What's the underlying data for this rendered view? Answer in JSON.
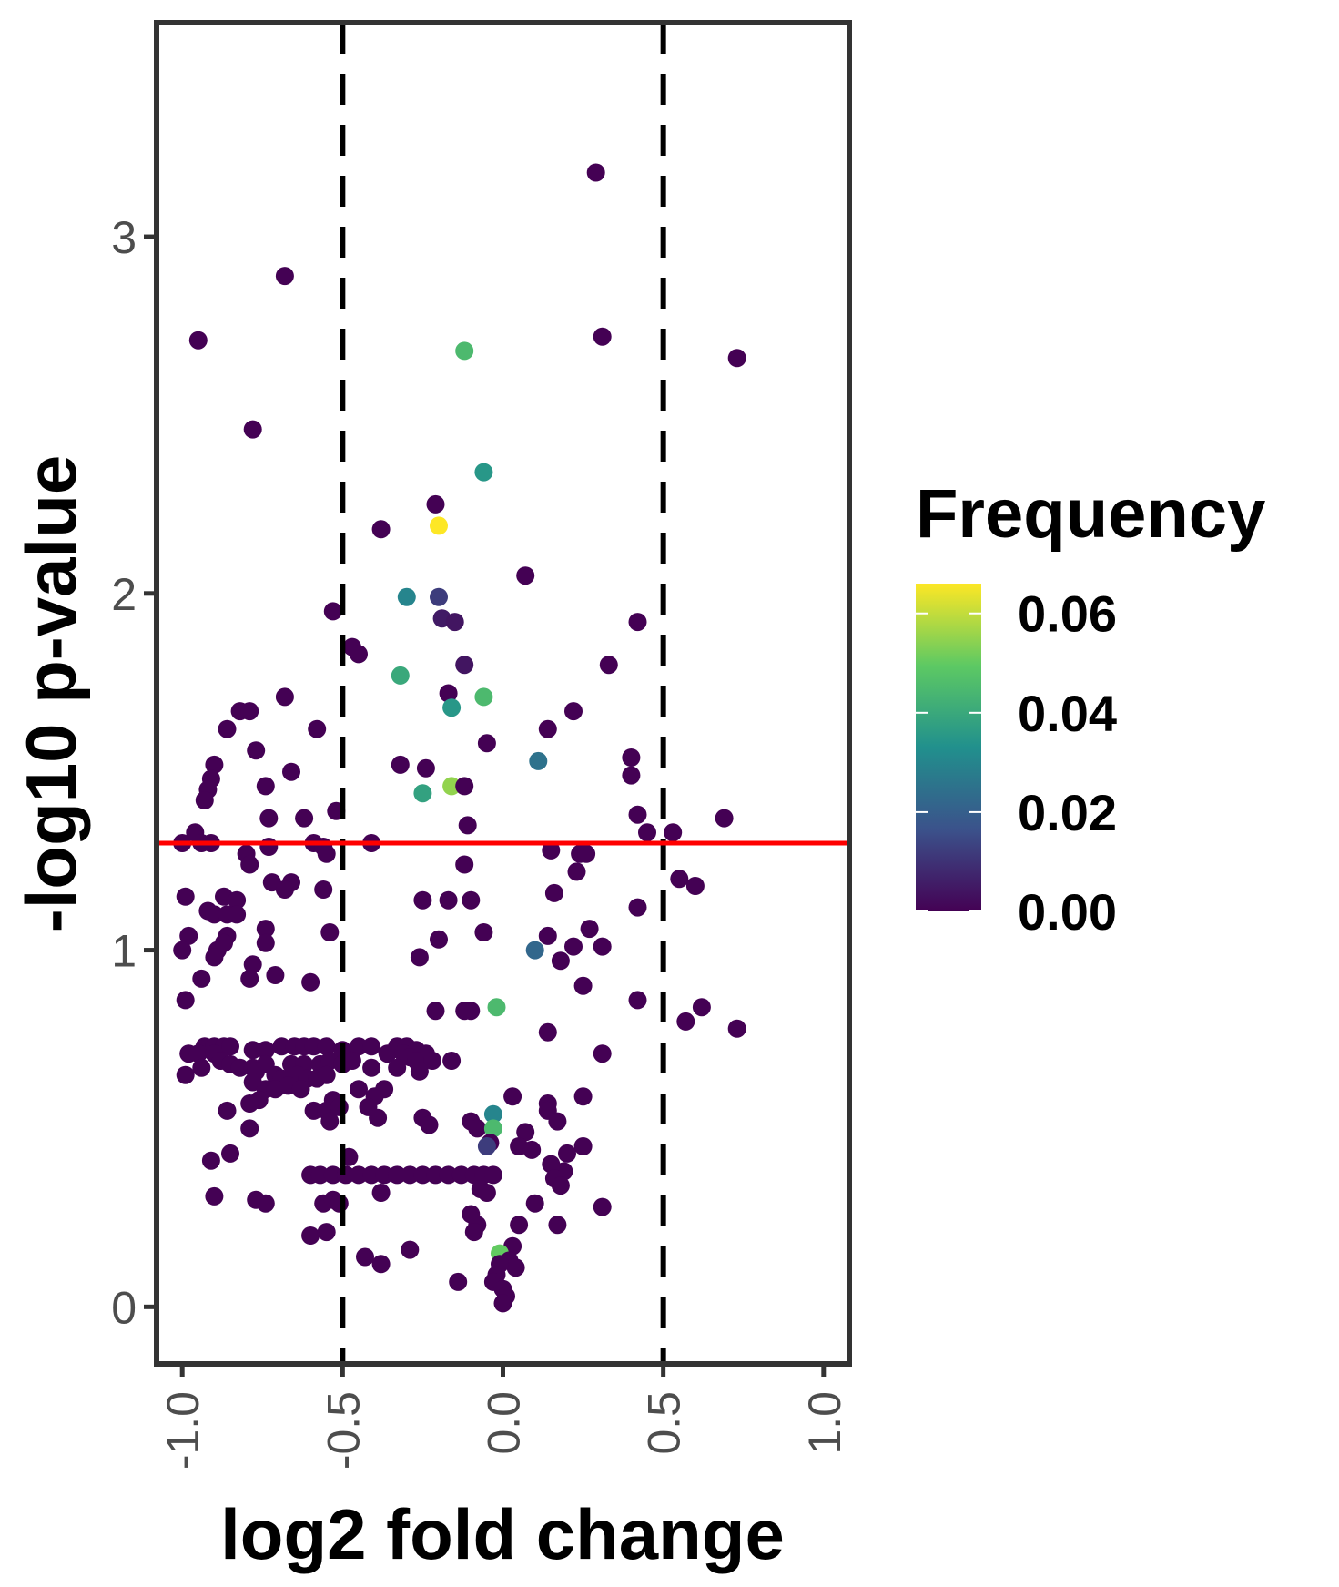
{
  "chart_data": {
    "type": "scatter",
    "xlabel": "log2 fold change",
    "ylabel": "-log10 p-value",
    "xlim": [
      -1.08,
      1.08
    ],
    "ylim": [
      -0.16,
      3.6
    ],
    "x_ticks": [
      "-1.0",
      "-0.5",
      "0.0",
      "0.5",
      "1.0"
    ],
    "x_tick_values": [
      -1.0,
      -0.5,
      0.0,
      0.5,
      1.0
    ],
    "y_ticks": [
      "0",
      "1",
      "2",
      "3"
    ],
    "y_tick_values": [
      0,
      1,
      2,
      3
    ],
    "vlines": [
      -0.5,
      0.5
    ],
    "hline": 1.3,
    "hline_color": "#ff0000",
    "vline_color": "#000000",
    "grid": false,
    "legend": {
      "title": "Frequency",
      "position": "right",
      "labels": [
        "0.06",
        "0.04",
        "0.02",
        "0.00"
      ],
      "values": [
        0.06,
        0.04,
        0.02,
        0.0
      ],
      "range": [
        0.0,
        0.066
      ],
      "colormap": [
        "#440154",
        "#3b528b",
        "#21908d",
        "#5dc963",
        "#fde725"
      ]
    },
    "points": [
      [
        0.29,
        3.18,
        0.0
      ],
      [
        -0.68,
        2.89,
        0.0
      ],
      [
        0.31,
        2.72,
        0.0
      ],
      [
        -0.95,
        2.71,
        0.0
      ],
      [
        -0.12,
        2.68,
        0.045
      ],
      [
        0.73,
        2.66,
        0.0
      ],
      [
        -0.78,
        2.46,
        0.0
      ],
      [
        -0.06,
        2.34,
        0.035
      ],
      [
        -0.21,
        2.25,
        0.0
      ],
      [
        -0.2,
        2.19,
        0.066
      ],
      [
        -0.38,
        2.18,
        0.0
      ],
      [
        0.07,
        2.05,
        0.0
      ],
      [
        -0.3,
        1.99,
        0.03
      ],
      [
        -0.2,
        1.99,
        0.012
      ],
      [
        -0.53,
        1.95,
        0.0
      ],
      [
        -0.19,
        1.93,
        0.005
      ],
      [
        -0.15,
        1.92,
        0.004
      ],
      [
        0.42,
        1.92,
        0.0
      ],
      [
        -0.47,
        1.85,
        0.0
      ],
      [
        -0.45,
        1.83,
        0.0
      ],
      [
        -0.12,
        1.8,
        0.004
      ],
      [
        0.33,
        1.8,
        0.0
      ],
      [
        -0.32,
        1.77,
        0.04
      ],
      [
        -0.06,
        1.71,
        0.045
      ],
      [
        -0.68,
        1.71,
        0.0
      ],
      [
        -0.17,
        1.72,
        0.0
      ],
      [
        -0.16,
        1.68,
        0.035
      ],
      [
        -0.82,
        1.67,
        0.0
      ],
      [
        -0.79,
        1.67,
        0.0
      ],
      [
        0.22,
        1.67,
        0.0
      ],
      [
        -0.86,
        1.62,
        0.0
      ],
      [
        -0.58,
        1.62,
        0.0
      ],
      [
        0.14,
        1.62,
        0.0
      ],
      [
        -0.05,
        1.58,
        0.0
      ],
      [
        -0.77,
        1.56,
        0.0
      ],
      [
        0.4,
        1.54,
        0.0
      ],
      [
        -0.32,
        1.52,
        0.0
      ],
      [
        0.11,
        1.53,
        0.025
      ],
      [
        -0.24,
        1.51,
        0.0
      ],
      [
        -0.9,
        1.52,
        0.0
      ],
      [
        -0.66,
        1.5,
        0.0
      ],
      [
        -0.91,
        1.48,
        0.0
      ],
      [
        0.4,
        1.49,
        0.0
      ],
      [
        -0.74,
        1.46,
        0.0
      ],
      [
        -0.16,
        1.46,
        0.055
      ],
      [
        -0.12,
        1.46,
        0.0
      ],
      [
        -0.92,
        1.45,
        0.0
      ],
      [
        -0.25,
        1.44,
        0.038
      ],
      [
        -0.93,
        1.42,
        0.0
      ],
      [
        -0.52,
        1.39,
        0.0
      ],
      [
        0.42,
        1.38,
        0.0
      ],
      [
        0.69,
        1.37,
        0.0
      ],
      [
        -0.73,
        1.37,
        0.0
      ],
      [
        -0.62,
        1.37,
        0.0
      ],
      [
        -0.96,
        1.33,
        0.0
      ],
      [
        -0.11,
        1.35,
        0.0
      ],
      [
        0.45,
        1.33,
        0.0
      ],
      [
        0.53,
        1.33,
        0.0
      ],
      [
        -0.94,
        1.3,
        0.0
      ],
      [
        -0.91,
        1.3,
        0.0
      ],
      [
        -1.0,
        1.3,
        0.0
      ],
      [
        -0.59,
        1.3,
        0.0
      ],
      [
        -0.41,
        1.3,
        0.0
      ],
      [
        -0.8,
        1.27,
        0.0
      ],
      [
        -0.73,
        1.29,
        0.0
      ],
      [
        -0.56,
        1.29,
        0.0
      ],
      [
        -0.55,
        1.27,
        0.0
      ],
      [
        0.15,
        1.28,
        0.0
      ],
      [
        0.24,
        1.27,
        0.0
      ],
      [
        0.26,
        1.27,
        0.0
      ],
      [
        -0.79,
        1.24,
        0.0
      ],
      [
        -0.12,
        1.24,
        0.0
      ],
      [
        0.23,
        1.22,
        0.0
      ],
      [
        -0.72,
        1.19,
        0.0
      ],
      [
        -0.66,
        1.19,
        0.0
      ],
      [
        -0.68,
        1.17,
        0.0
      ],
      [
        0.55,
        1.2,
        0.0
      ],
      [
        0.6,
        1.18,
        0.0
      ],
      [
        -0.56,
        1.17,
        0.0
      ],
      [
        0.16,
        1.16,
        0.0
      ],
      [
        -0.99,
        1.15,
        0.0
      ],
      [
        -0.87,
        1.15,
        0.0
      ],
      [
        -0.83,
        1.14,
        0.0
      ],
      [
        -0.25,
        1.14,
        0.0
      ],
      [
        -0.17,
        1.14,
        0.0
      ],
      [
        -0.1,
        1.14,
        0.0
      ],
      [
        -0.92,
        1.11,
        0.0
      ],
      [
        -0.9,
        1.1,
        0.0
      ],
      [
        -0.86,
        1.1,
        0.0
      ],
      [
        -0.83,
        1.1,
        0.0
      ],
      [
        0.42,
        1.12,
        0.0
      ],
      [
        -0.74,
        1.06,
        0.0
      ],
      [
        -0.54,
        1.05,
        0.0
      ],
      [
        -0.06,
        1.05,
        0.0
      ],
      [
        0.27,
        1.06,
        0.0
      ],
      [
        0.14,
        1.04,
        0.0
      ],
      [
        -0.98,
        1.04,
        0.0
      ],
      [
        -0.86,
        1.04,
        0.0
      ],
      [
        -0.2,
        1.03,
        0.0
      ],
      [
        -0.74,
        1.02,
        0.0
      ],
      [
        -1.0,
        1.0,
        0.0
      ],
      [
        -0.89,
        1.0,
        0.0
      ],
      [
        -0.87,
        1.02,
        0.0
      ],
      [
        0.31,
        1.01,
        0.0
      ],
      [
        0.22,
        1.01,
        0.0
      ],
      [
        0.1,
        1.0,
        0.022
      ],
      [
        -0.9,
        0.98,
        0.0
      ],
      [
        -0.26,
        0.98,
        0.0
      ],
      [
        0.18,
        0.97,
        0.0
      ],
      [
        -0.78,
        0.96,
        0.0
      ],
      [
        -0.71,
        0.93,
        0.0
      ],
      [
        -0.79,
        0.92,
        0.0
      ],
      [
        -0.94,
        0.92,
        0.0
      ],
      [
        -0.6,
        0.91,
        0.0
      ],
      [
        0.25,
        0.9,
        0.0
      ],
      [
        -0.99,
        0.86,
        0.0
      ],
      [
        0.42,
        0.86,
        0.0
      ],
      [
        -0.02,
        0.84,
        0.045
      ],
      [
        0.62,
        0.84,
        0.0
      ],
      [
        -0.1,
        0.83,
        0.0
      ],
      [
        -0.12,
        0.83,
        0.0
      ],
      [
        -0.21,
        0.83,
        0.0
      ],
      [
        0.57,
        0.8,
        0.0
      ],
      [
        0.73,
        0.78,
        0.0
      ],
      [
        0.14,
        0.77,
        0.0
      ],
      [
        -0.93,
        0.73,
        0.0
      ],
      [
        -0.9,
        0.73,
        0.0
      ],
      [
        -0.87,
        0.73,
        0.0
      ],
      [
        -0.85,
        0.73,
        0.0
      ],
      [
        -0.78,
        0.72,
        0.0
      ],
      [
        -0.74,
        0.72,
        0.0
      ],
      [
        -0.69,
        0.73,
        0.0
      ],
      [
        -0.65,
        0.73,
        0.0
      ],
      [
        -0.62,
        0.73,
        0.0
      ],
      [
        -0.59,
        0.73,
        0.0
      ],
      [
        -0.55,
        0.73,
        0.0
      ],
      [
        -0.5,
        0.72,
        0.0
      ],
      [
        -0.45,
        0.73,
        0.0
      ],
      [
        -0.41,
        0.73,
        0.0
      ],
      [
        -0.33,
        0.73,
        0.0
      ],
      [
        -0.3,
        0.73,
        0.0
      ],
      [
        -0.27,
        0.72,
        0.0
      ],
      [
        -0.24,
        0.71,
        0.0
      ],
      [
        -0.98,
        0.71,
        0.0
      ],
      [
        -0.95,
        0.71,
        0.0
      ],
      [
        -0.9,
        0.71,
        0.0
      ],
      [
        -0.36,
        0.71,
        0.0
      ],
      [
        -0.31,
        0.71,
        0.0
      ],
      [
        -0.29,
        0.7,
        0.0
      ],
      [
        -0.88,
        0.69,
        0.0
      ],
      [
        -0.85,
        0.68,
        0.0
      ],
      [
        -0.82,
        0.67,
        0.0
      ],
      [
        -0.78,
        0.67,
        0.0
      ],
      [
        -0.74,
        0.68,
        0.0
      ],
      [
        -0.66,
        0.68,
        0.0
      ],
      [
        -0.62,
        0.68,
        0.0
      ],
      [
        -0.57,
        0.68,
        0.0
      ],
      [
        -0.54,
        0.69,
        0.0
      ],
      [
        -0.5,
        0.68,
        0.0
      ],
      [
        -0.47,
        0.69,
        0.0
      ],
      [
        -0.27,
        0.69,
        0.0
      ],
      [
        -0.22,
        0.69,
        0.0
      ],
      [
        -0.16,
        0.69,
        0.0
      ],
      [
        0.31,
        0.71,
        0.0
      ],
      [
        -0.77,
        0.66,
        0.0
      ],
      [
        -0.71,
        0.65,
        0.0
      ],
      [
        -0.69,
        0.64,
        0.0
      ],
      [
        -0.64,
        0.65,
        0.0
      ],
      [
        -0.61,
        0.64,
        0.0
      ],
      [
        -0.58,
        0.64,
        0.0
      ],
      [
        -0.55,
        0.65,
        0.0
      ],
      [
        -0.41,
        0.67,
        0.0
      ],
      [
        -0.33,
        0.67,
        0.0
      ],
      [
        -0.26,
        0.66,
        0.0
      ],
      [
        -0.94,
        0.67,
        0.0
      ],
      [
        -0.99,
        0.65,
        0.0
      ],
      [
        -0.78,
        0.63,
        0.0
      ],
      [
        -0.74,
        0.61,
        0.0
      ],
      [
        -0.71,
        0.61,
        0.0
      ],
      [
        -0.67,
        0.62,
        0.0
      ],
      [
        -0.63,
        0.61,
        0.0
      ],
      [
        -0.45,
        0.61,
        0.0
      ],
      [
        -0.37,
        0.61,
        0.0
      ],
      [
        -0.76,
        0.58,
        0.0
      ],
      [
        -0.79,
        0.57,
        0.0
      ],
      [
        -0.4,
        0.59,
        0.0
      ],
      [
        -0.53,
        0.58,
        0.0
      ],
      [
        -0.42,
        0.56,
        0.0
      ],
      [
        0.03,
        0.59,
        0.0
      ],
      [
        0.25,
        0.59,
        0.0
      ],
      [
        0.14,
        0.57,
        0.0
      ],
      [
        -0.86,
        0.55,
        0.0
      ],
      [
        -0.59,
        0.55,
        0.0
      ],
      [
        -0.55,
        0.55,
        0.0
      ],
      [
        -0.51,
        0.56,
        0.0
      ],
      [
        -0.39,
        0.53,
        0.0
      ],
      [
        0.14,
        0.55,
        0.0
      ],
      [
        -0.25,
        0.53,
        0.0
      ],
      [
        -0.54,
        0.52,
        0.0
      ],
      [
        -0.23,
        0.51,
        0.0
      ],
      [
        -0.1,
        0.52,
        0.0
      ],
      [
        -0.03,
        0.54,
        0.03
      ],
      [
        0.17,
        0.52,
        0.0
      ],
      [
        -0.79,
        0.5,
        0.0
      ],
      [
        -0.08,
        0.5,
        0.0
      ],
      [
        -0.03,
        0.5,
        0.045
      ],
      [
        0.07,
        0.49,
        0.0
      ],
      [
        -0.04,
        0.46,
        0.0
      ],
      [
        -0.05,
        0.45,
        0.012
      ],
      [
        0.05,
        0.45,
        0.0
      ],
      [
        0.09,
        0.44,
        0.0
      ],
      [
        0.25,
        0.45,
        0.0
      ],
      [
        0.2,
        0.43,
        0.0
      ],
      [
        -0.85,
        0.43,
        0.0
      ],
      [
        -0.91,
        0.41,
        0.0
      ],
      [
        -0.48,
        0.42,
        0.0
      ],
      [
        0.15,
        0.4,
        0.0
      ],
      [
        0.19,
        0.38,
        0.0
      ],
      [
        -0.6,
        0.37,
        0.0
      ],
      [
        -0.57,
        0.37,
        0.0
      ],
      [
        -0.53,
        0.37,
        0.0
      ],
      [
        -0.49,
        0.37,
        0.0
      ],
      [
        -0.45,
        0.37,
        0.0
      ],
      [
        -0.41,
        0.37,
        0.0
      ],
      [
        -0.37,
        0.37,
        0.0
      ],
      [
        -0.33,
        0.37,
        0.0
      ],
      [
        -0.29,
        0.37,
        0.0
      ],
      [
        -0.25,
        0.37,
        0.0
      ],
      [
        -0.21,
        0.37,
        0.0
      ],
      [
        -0.17,
        0.37,
        0.0
      ],
      [
        -0.13,
        0.37,
        0.0
      ],
      [
        -0.09,
        0.37,
        0.0
      ],
      [
        -0.06,
        0.37,
        0.0
      ],
      [
        -0.03,
        0.37,
        0.0
      ],
      [
        0.16,
        0.36,
        0.0
      ],
      [
        0.18,
        0.34,
        0.0
      ],
      [
        -0.07,
        0.33,
        0.0
      ],
      [
        -0.38,
        0.32,
        0.0
      ],
      [
        -0.05,
        0.32,
        0.0
      ],
      [
        -0.9,
        0.31,
        0.0
      ],
      [
        -0.77,
        0.3,
        0.0
      ],
      [
        -0.74,
        0.29,
        0.0
      ],
      [
        -0.56,
        0.29,
        0.0
      ],
      [
        -0.53,
        0.3,
        0.0
      ],
      [
        -0.51,
        0.29,
        0.0
      ],
      [
        0.1,
        0.29,
        0.0
      ],
      [
        0.31,
        0.28,
        0.0
      ],
      [
        -0.1,
        0.26,
        0.0
      ],
      [
        0.17,
        0.23,
        0.0
      ],
      [
        -0.08,
        0.23,
        0.0
      ],
      [
        0.05,
        0.23,
        0.0
      ],
      [
        -0.09,
        0.21,
        0.0
      ],
      [
        -0.6,
        0.2,
        0.0
      ],
      [
        -0.55,
        0.21,
        0.0
      ],
      [
        -0.29,
        0.16,
        0.0
      ],
      [
        0.03,
        0.17,
        0.0
      ],
      [
        -0.01,
        0.15,
        0.05
      ],
      [
        0.02,
        0.13,
        0.0
      ],
      [
        -0.43,
        0.14,
        0.0
      ],
      [
        -0.38,
        0.12,
        0.0
      ],
      [
        0.04,
        0.11,
        0.0
      ],
      [
        -0.01,
        0.12,
        0.0
      ],
      [
        -0.02,
        0.09,
        0.0
      ],
      [
        -0.03,
        0.07,
        0.0
      ],
      [
        -0.14,
        0.07,
        0.0
      ],
      [
        0.0,
        0.05,
        0.0
      ],
      [
        0.01,
        0.03,
        0.0
      ],
      [
        0.0,
        0.01,
        0.0
      ]
    ]
  }
}
